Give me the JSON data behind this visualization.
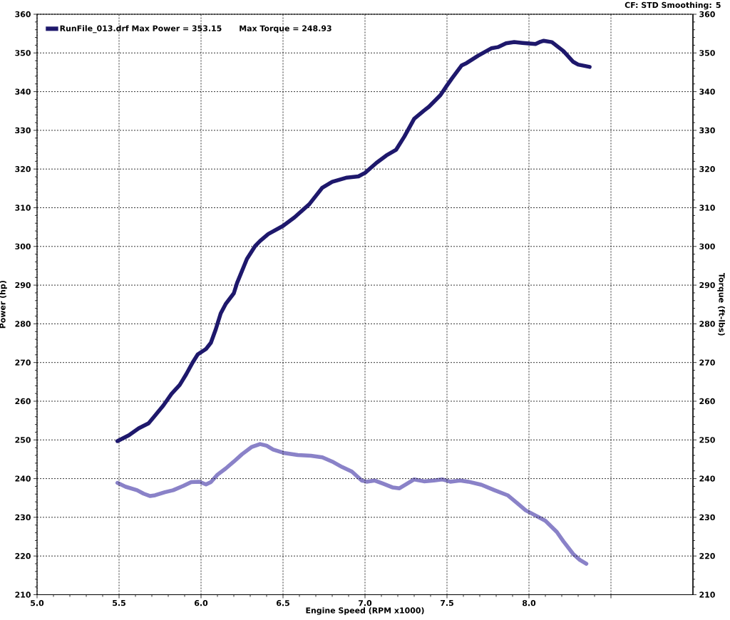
{
  "chart_data": {
    "type": "line",
    "xlabel": "Engine Speed (RPM x1000)",
    "ylabel": "Power (hp)",
    "y2label": "Torque (ft-lbs)",
    "annotations": [
      "Max Torque = 248.93",
      "CF: STD Smoothing: 5"
    ],
    "xlim": [
      5.0,
      9.0
    ],
    "xticks": [
      {
        "value": 5.0,
        "label": "5.0"
      },
      {
        "value": 5.5,
        "label": "5.5"
      },
      {
        "value": 6.0,
        "label": "6.0"
      },
      {
        "value": 6.5,
        "label": "6.5"
      },
      {
        "value": 7.0,
        "label": "7.0"
      },
      {
        "value": 7.5,
        "label": "7.5"
      },
      {
        "value": 8.0,
        "label": "8.0"
      },
      {
        "value": 8.5,
        "label": null
      }
    ],
    "ylim": [
      210,
      360
    ],
    "yticks": [
      210,
      220,
      230,
      240,
      250,
      260,
      270,
      280,
      290,
      300,
      310,
      320,
      330,
      340,
      350,
      360
    ],
    "y2lim": [
      210,
      360
    ],
    "y2ticks": [
      210,
      220,
      230,
      240,
      250,
      260,
      270,
      280,
      290,
      300,
      310,
      320,
      330,
      340,
      350,
      360
    ],
    "grid": true,
    "legend": "top left",
    "marker": "none",
    "line_style": "solid",
    "series": [
      {
        "name": "RunFile_013.drf Max Power = 353.15",
        "color": "#1e186c",
        "x": [
          5.49,
          5.56,
          5.62,
          5.68,
          5.71,
          5.77,
          5.82,
          5.87,
          5.91,
          5.95,
          5.98,
          6.03,
          6.06,
          6.09,
          6.12,
          6.15,
          6.2,
          6.22,
          6.28,
          6.33,
          6.36,
          6.41,
          6.5,
          6.57,
          6.66,
          6.74,
          6.8,
          6.89,
          6.96,
          7.0,
          7.07,
          7.13,
          7.19,
          7.24,
          7.3,
          7.36,
          7.39,
          7.46,
          7.5,
          7.53,
          7.59,
          7.62,
          7.69,
          7.77,
          7.81,
          7.86,
          7.91,
          7.96,
          8.04,
          8.07,
          8.09,
          8.14,
          8.21,
          8.27,
          8.3,
          8.37
        ],
        "values": [
          249.7,
          251.2,
          253.0,
          254.3,
          255.8,
          258.9,
          261.9,
          264.2,
          267.0,
          270.1,
          272.1,
          273.5,
          275.1,
          278.6,
          282.7,
          285.1,
          287.9,
          290.6,
          296.8,
          300.1,
          301.4,
          303.2,
          305.3,
          307.5,
          310.9,
          315.2,
          316.7,
          317.8,
          318.1,
          319.0,
          321.6,
          323.5,
          325.0,
          328.4,
          333.0,
          335.1,
          336.1,
          339.1,
          341.6,
          343.4,
          346.8,
          347.4,
          349.3,
          351.2,
          351.5,
          352.5,
          352.8,
          352.6,
          352.3,
          352.9,
          353.15,
          352.8,
          350.5,
          347.7,
          347.0,
          346.4
        ]
      },
      {
        "color": "#8a82c8",
        "axis": "y2",
        "x": [
          5.49,
          5.54,
          5.61,
          5.65,
          5.69,
          5.72,
          5.78,
          5.83,
          5.89,
          5.94,
          5.99,
          6.03,
          6.06,
          6.1,
          6.15,
          6.2,
          6.25,
          6.31,
          6.36,
          6.4,
          6.44,
          6.51,
          6.59,
          6.67,
          6.74,
          6.8,
          6.86,
          6.92,
          6.98,
          7.01,
          7.06,
          7.11,
          7.17,
          7.21,
          7.25,
          7.3,
          7.36,
          7.42,
          7.47,
          7.52,
          7.58,
          7.63,
          7.71,
          7.79,
          7.87,
          7.93,
          7.98,
          8.03,
          8.1,
          8.17,
          8.21,
          8.27,
          8.31,
          8.35
        ],
        "values": [
          238.9,
          237.9,
          237.0,
          236.1,
          235.5,
          235.7,
          236.5,
          237.0,
          238.1,
          239.1,
          239.2,
          238.5,
          239.1,
          241.0,
          242.6,
          244.4,
          246.3,
          248.2,
          248.93,
          248.5,
          247.5,
          246.6,
          246.1,
          245.9,
          245.5,
          244.4,
          243.0,
          241.8,
          239.5,
          239.2,
          239.5,
          238.7,
          237.7,
          237.5,
          238.5,
          239.8,
          239.3,
          239.5,
          239.8,
          239.2,
          239.5,
          239.2,
          238.4,
          237.0,
          235.7,
          233.6,
          231.8,
          230.7,
          229.1,
          226.2,
          223.8,
          220.5,
          219.0,
          218.0
        ]
      }
    ]
  }
}
